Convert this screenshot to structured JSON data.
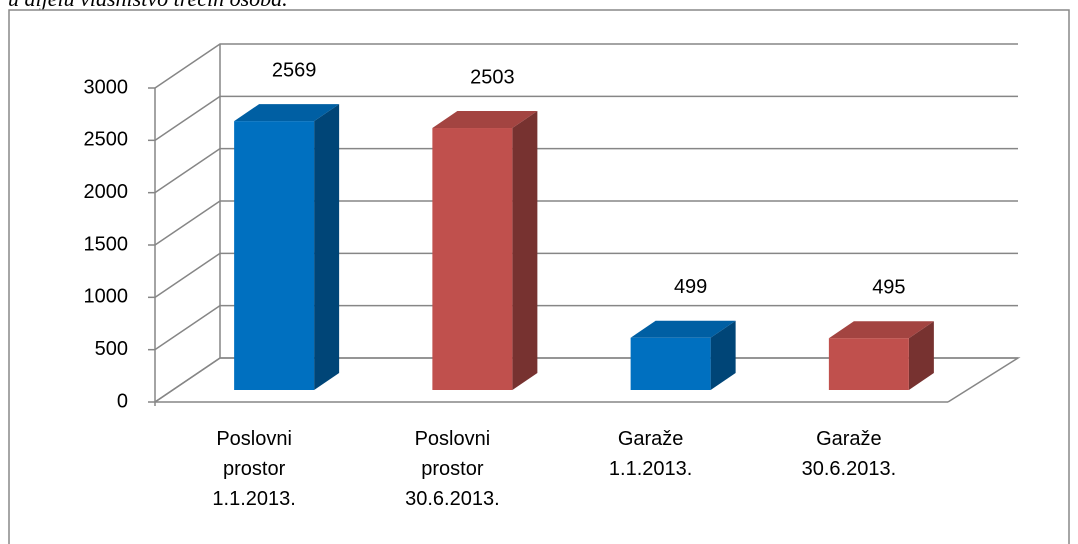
{
  "header_text": "u dijelu vlasništvo trećih osoba.",
  "chart_data": {
    "type": "bar3d",
    "categories": [
      "Poslovni prostor 1.1.2013.",
      "Poslovni prostor 30.6.2013.",
      "Garaže 1.1.2013.",
      "Garaže 30.6.2013."
    ],
    "values": [
      2569,
      2503,
      499,
      495
    ],
    "colors": [
      "#0070c0",
      "#c0504d",
      "#0070c0",
      "#c0504d"
    ],
    "ylim": [
      0,
      3000
    ],
    "yticks": [
      0,
      500,
      1000,
      1500,
      2000,
      2500,
      3000
    ],
    "grid": true
  }
}
